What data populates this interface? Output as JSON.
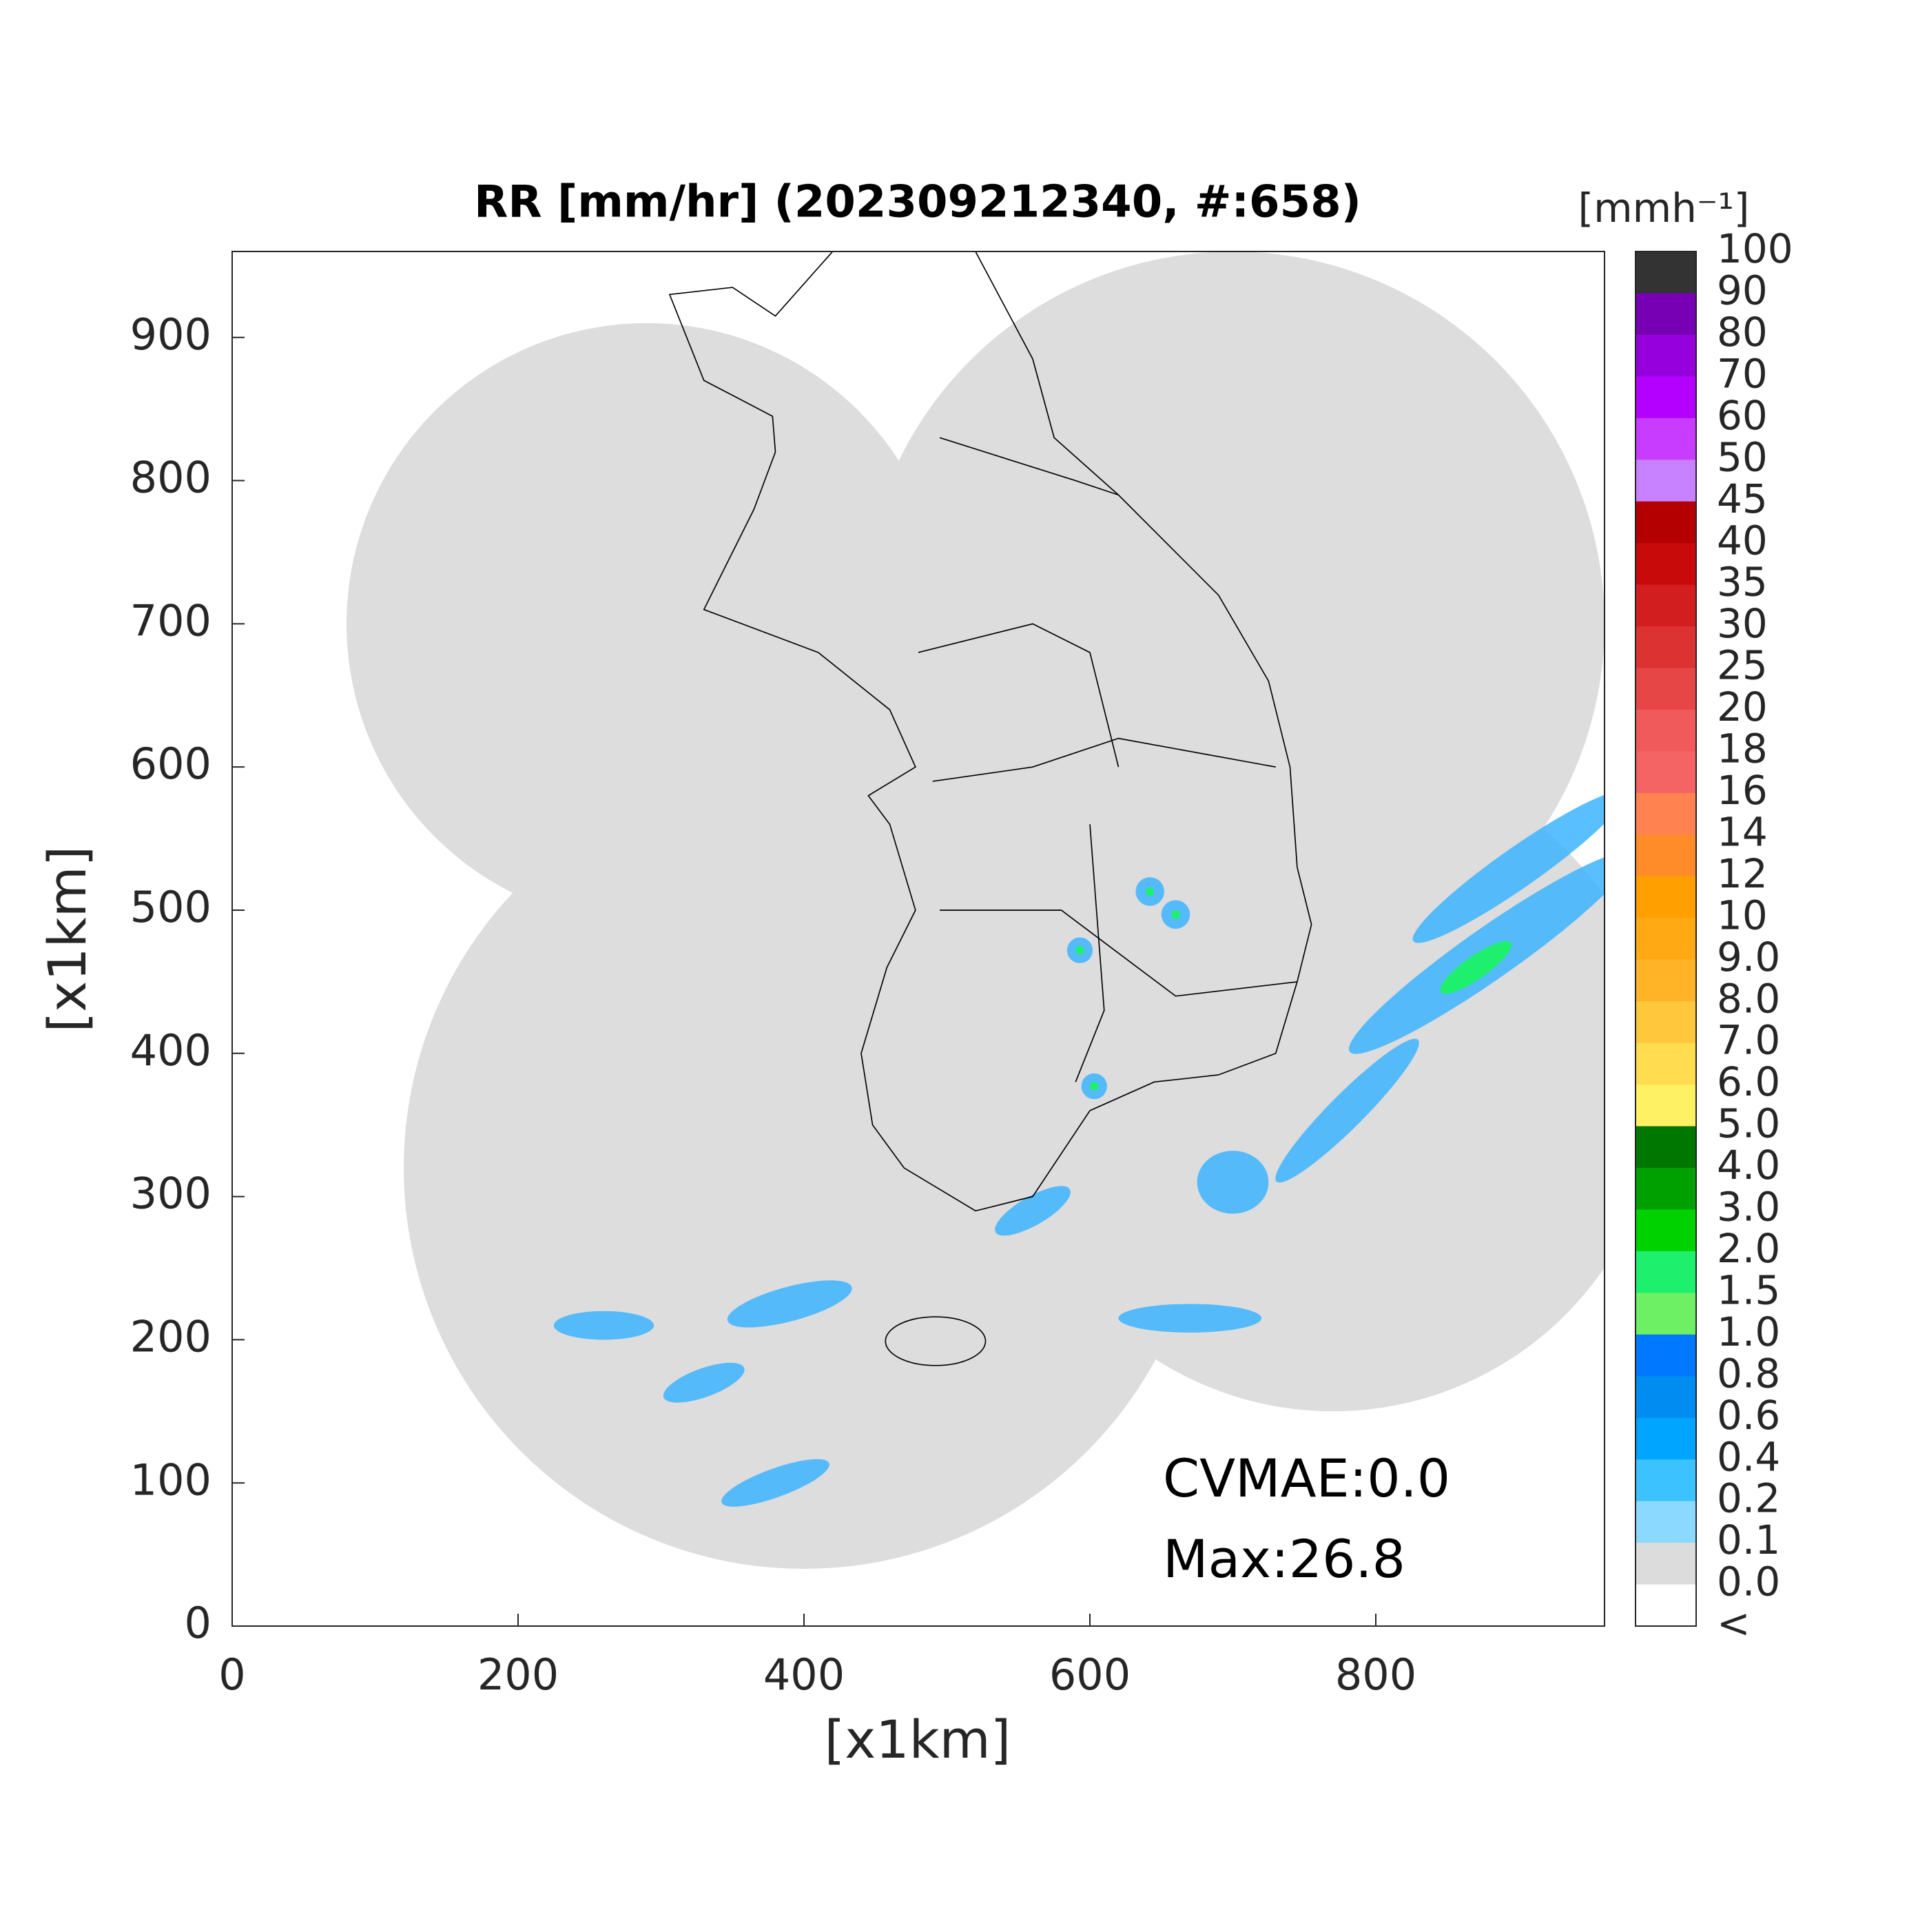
{
  "chart_data": {
    "type": "map",
    "title": "RR [mm/hr] (202309212340, #:658)",
    "xlabel": "[x1km]",
    "ylabel": "[x1km]",
    "xlim": [
      0,
      960
    ],
    "ylim": [
      0,
      960
    ],
    "xticks": [
      0,
      200,
      400,
      600,
      800
    ],
    "yticks": [
      0,
      100,
      200,
      300,
      400,
      500,
      600,
      700,
      800,
      900
    ],
    "annotations": [
      "CVMAE:0.0",
      "Max:26.8"
    ],
    "colorbar": {
      "title": "[mmh⁻¹]",
      "labels": [
        "100",
        "90",
        "80",
        "70",
        "60",
        "50",
        "45",
        "40",
        "35",
        "30",
        "25",
        "20",
        "18",
        "16",
        "14",
        "12",
        "10",
        "9.0",
        "8.0",
        "7.0",
        "6.0",
        "5.0",
        "4.0",
        "3.0",
        "2.0",
        "1.5",
        "1.0",
        "0.8",
        "0.6",
        "0.4",
        "0.2",
        "0.1",
        "0.0",
        "<"
      ],
      "colors": [
        "#333333",
        "#7800b4",
        "#9600dc",
        "#b400ff",
        "#c83cff",
        "#c882ff",
        "#b40000",
        "#c80a0a",
        "#d21e1e",
        "#dc3232",
        "#e64646",
        "#f05a5a",
        "#f56464",
        "#ff8250",
        "#ff8c28",
        "#ffa000",
        "#ffaa14",
        "#ffb428",
        "#ffc83c",
        "#ffdc50",
        "#fff064",
        "#007800",
        "#00a000",
        "#00d200",
        "#1ef06e",
        "#6ef064",
        "#0078ff",
        "#008cf0",
        "#00a5ff",
        "#3cc3ff",
        "#8cd9ff",
        "#dcdcdc",
        "#ffffff"
      ]
    }
  }
}
